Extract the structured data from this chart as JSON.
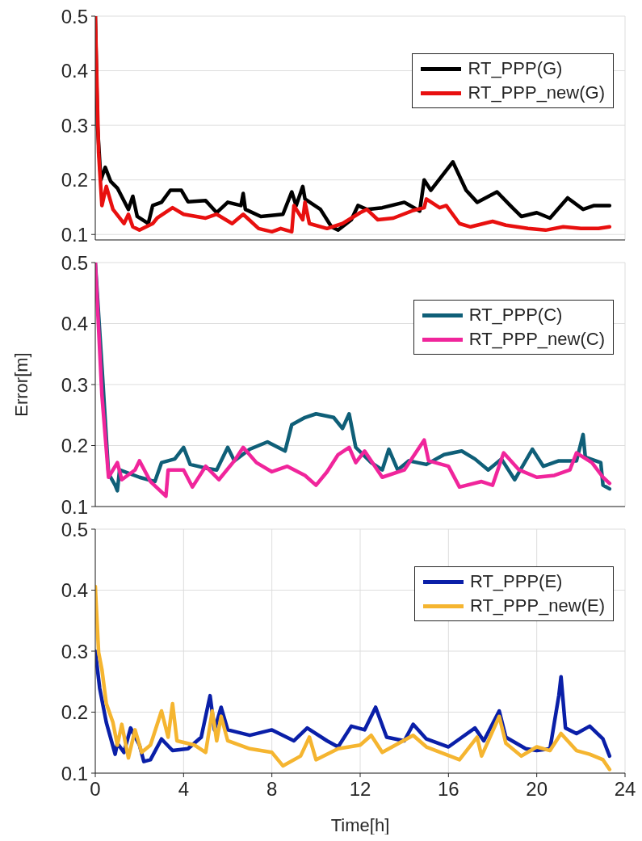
{
  "chart_data": [
    {
      "type": "line",
      "xlim": [
        0,
        24
      ],
      "xticks": [
        0,
        4,
        8,
        12,
        16,
        20,
        24
      ],
      "ylim": [
        0.09,
        0.5
      ],
      "yticks": [
        0.1,
        0.2,
        0.3,
        0.4,
        0.5
      ],
      "grid": true,
      "legend": "top right",
      "tick_labels": "y",
      "line_style": "solid",
      "marker": "none",
      "series": [
        {
          "name": "RT_PPP(G)",
          "color": "#000000",
          "x": [
            0,
            0.1,
            0.25,
            0.45,
            0.7,
            1.0,
            1.5,
            1.7,
            1.9,
            2.4,
            2.6,
            3.0,
            3.4,
            3.9,
            4.2,
            5.0,
            5.5,
            6.0,
            6.6,
            6.7,
            6.8,
            7.5,
            8.5,
            8.9,
            9.1,
            9.4,
            9.5,
            10.2,
            10.7,
            11.0,
            11.6,
            11.9,
            12.3,
            13.0,
            14.0,
            14.7,
            14.9,
            15.2,
            16.2,
            16.8,
            17.3,
            18.2,
            18.8,
            19.3,
            20.0,
            20.6,
            21.4,
            22.1,
            22.6,
            23.3
          ],
          "values": [
            0.5,
            0.3,
            0.2,
            0.223,
            0.197,
            0.185,
            0.146,
            0.17,
            0.133,
            0.12,
            0.153,
            0.159,
            0.181,
            0.181,
            0.16,
            0.162,
            0.14,
            0.159,
            0.153,
            0.175,
            0.146,
            0.133,
            0.137,
            0.178,
            0.153,
            0.188,
            0.165,
            0.146,
            0.114,
            0.108,
            0.127,
            0.153,
            0.146,
            0.149,
            0.159,
            0.143,
            0.2,
            0.181,
            0.233,
            0.181,
            0.159,
            0.178,
            0.153,
            0.133,
            0.14,
            0.13,
            0.167,
            0.146,
            0.153,
            0.153
          ]
        },
        {
          "name": "RT_PPP_new(G)",
          "color": "#e8100f",
          "x": [
            0,
            0.15,
            0.3,
            0.5,
            0.8,
            1.3,
            1.5,
            1.7,
            2.0,
            2.6,
            2.8,
            3.5,
            4.0,
            5.0,
            5.5,
            6.2,
            6.7,
            7.4,
            8.0,
            8.4,
            8.9,
            9.0,
            9.4,
            9.5,
            9.7,
            10.5,
            11.2,
            12.0,
            12.3,
            12.8,
            13.5,
            14.4,
            14.9,
            15.0,
            15.6,
            15.9,
            16.5,
            17.0,
            18.0,
            18.6,
            19.6,
            20.4,
            21.2,
            22.0,
            22.8,
            23.3
          ],
          "values": [
            0.5,
            0.25,
            0.153,
            0.188,
            0.146,
            0.12,
            0.137,
            0.114,
            0.108,
            0.12,
            0.13,
            0.149,
            0.137,
            0.13,
            0.137,
            0.12,
            0.137,
            0.111,
            0.105,
            0.111,
            0.105,
            0.153,
            0.127,
            0.159,
            0.12,
            0.111,
            0.12,
            0.14,
            0.146,
            0.127,
            0.13,
            0.144,
            0.149,
            0.165,
            0.149,
            0.153,
            0.12,
            0.114,
            0.124,
            0.117,
            0.111,
            0.108,
            0.114,
            0.111,
            0.111,
            0.114
          ]
        }
      ]
    },
    {
      "type": "line",
      "ylabel": "Error[m]",
      "xlim": [
        0,
        24
      ],
      "xticks": [
        0,
        4,
        8,
        12,
        16,
        20,
        24
      ],
      "ylim": [
        0.1,
        0.5
      ],
      "yticks": [
        0.1,
        0.2,
        0.3,
        0.4,
        0.5
      ],
      "grid": true,
      "legend": "top right",
      "tick_labels": "y",
      "line_style": "solid",
      "marker": "none",
      "series": [
        {
          "name": "RT_PPP(C)",
          "color": "#0f5f78",
          "x": [
            0,
            0.3,
            0.6,
            0.9,
            1.0,
            1.1,
            2.0,
            2.7,
            3.0,
            3.6,
            4.0,
            4.3,
            5.0,
            5.5,
            6.0,
            6.3,
            7.0,
            7.8,
            8.6,
            8.9,
            9.5,
            10.0,
            10.8,
            11.2,
            11.5,
            11.8,
            12.5,
            13.0,
            13.3,
            13.7,
            14.2,
            15.0,
            15.8,
            16.6,
            17.2,
            17.8,
            18.4,
            19.0,
            19.8,
            20.3,
            21.0,
            21.8,
            22.1,
            22.2,
            22.9,
            23.0,
            23.3
          ],
          "values": [
            0.5,
            0.33,
            0.154,
            0.135,
            0.126,
            0.16,
            0.148,
            0.141,
            0.172,
            0.178,
            0.197,
            0.169,
            0.163,
            0.16,
            0.197,
            0.175,
            0.194,
            0.206,
            0.191,
            0.234,
            0.246,
            0.252,
            0.246,
            0.228,
            0.252,
            0.197,
            0.172,
            0.16,
            0.194,
            0.16,
            0.175,
            0.169,
            0.185,
            0.191,
            0.178,
            0.16,
            0.178,
            0.144,
            0.194,
            0.166,
            0.175,
            0.175,
            0.218,
            0.181,
            0.172,
            0.135,
            0.129
          ]
        },
        {
          "name": "RT_PPP_new(C)",
          "color": "#f0259b",
          "x": [
            0,
            0.3,
            0.6,
            1.0,
            1.2,
            1.8,
            2.0,
            2.5,
            3.2,
            3.3,
            4.0,
            4.4,
            5.0,
            5.6,
            6.3,
            6.7,
            7.3,
            8.0,
            8.7,
            9.5,
            10.0,
            10.5,
            11.0,
            11.5,
            11.8,
            12.2,
            13.0,
            14.0,
            14.9,
            15.1,
            16.0,
            16.5,
            17.5,
            18.0,
            18.5,
            19.2,
            20.0,
            20.8,
            21.5,
            21.8,
            22.5,
            23.0,
            23.3
          ],
          "values": [
            0.5,
            0.283,
            0.148,
            0.172,
            0.144,
            0.16,
            0.175,
            0.141,
            0.117,
            0.16,
            0.16,
            0.132,
            0.166,
            0.144,
            0.175,
            0.197,
            0.172,
            0.157,
            0.166,
            0.151,
            0.135,
            0.157,
            0.185,
            0.197,
            0.172,
            0.191,
            0.148,
            0.16,
            0.209,
            0.175,
            0.166,
            0.132,
            0.141,
            0.135,
            0.188,
            0.16,
            0.148,
            0.151,
            0.16,
            0.188,
            0.172,
            0.148,
            0.138
          ]
        }
      ]
    },
    {
      "type": "line",
      "xlabel": "Time[h]",
      "xlim": [
        0,
        24
      ],
      "xticks": [
        0,
        4,
        8,
        12,
        16,
        20,
        24
      ],
      "ylim": [
        0.1,
        0.5
      ],
      "yticks": [
        0.1,
        0.2,
        0.3,
        0.4,
        0.5
      ],
      "grid": true,
      "legend": "top right",
      "line_style": "solid",
      "marker": "none",
      "series": [
        {
          "name": "RT_PPP(E)",
          "color": "#0a1fa8",
          "x": [
            0,
            0.2,
            0.5,
            0.9,
            1.0,
            1.3,
            1.6,
            2.0,
            2.2,
            2.5,
            3.0,
            3.5,
            4.2,
            4.8,
            5.2,
            5.4,
            5.7,
            6.0,
            7.0,
            8.0,
            9.0,
            9.6,
            10.5,
            11.0,
            11.6,
            12.2,
            12.7,
            13.2,
            14.0,
            14.4,
            15.0,
            16.0,
            16.5,
            17.2,
            17.6,
            18.3,
            18.6,
            19.5,
            20.0,
            20.6,
            21.0,
            21.1,
            21.3,
            21.8,
            22.4,
            23.0,
            23.3
          ],
          "values": [
            0.3,
            0.239,
            0.183,
            0.131,
            0.149,
            0.134,
            0.174,
            0.146,
            0.119,
            0.122,
            0.156,
            0.137,
            0.14,
            0.159,
            0.227,
            0.171,
            0.208,
            0.171,
            0.162,
            0.171,
            0.153,
            0.174,
            0.153,
            0.143,
            0.177,
            0.171,
            0.208,
            0.159,
            0.153,
            0.18,
            0.156,
            0.143,
            0.156,
            0.174,
            0.153,
            0.202,
            0.159,
            0.14,
            0.137,
            0.14,
            0.227,
            0.258,
            0.174,
            0.165,
            0.177,
            0.156,
            0.128
          ]
        },
        {
          "name": "RT_PPP_new(E)",
          "color": "#f5b530",
          "x": [
            0,
            0.15,
            0.3,
            0.5,
            0.8,
            1.0,
            1.2,
            1.5,
            1.8,
            2.1,
            2.5,
            3.0,
            3.3,
            3.5,
            3.7,
            4.5,
            5.0,
            5.3,
            5.5,
            5.7,
            6.0,
            7.0,
            8.0,
            8.5,
            9.3,
            9.7,
            10.0,
            11.0,
            12.0,
            12.5,
            13.0,
            14.4,
            15.0,
            16.5,
            17.3,
            17.5,
            18.3,
            18.6,
            19.3,
            20.0,
            20.6,
            21.1,
            21.8,
            22.4,
            23.0,
            23.3
          ],
          "values": [
            0.406,
            0.298,
            0.27,
            0.214,
            0.183,
            0.146,
            0.18,
            0.125,
            0.171,
            0.134,
            0.146,
            0.202,
            0.159,
            0.214,
            0.153,
            0.146,
            0.134,
            0.202,
            0.153,
            0.193,
            0.153,
            0.14,
            0.134,
            0.112,
            0.128,
            0.159,
            0.122,
            0.14,
            0.146,
            0.162,
            0.134,
            0.162,
            0.143,
            0.122,
            0.159,
            0.128,
            0.193,
            0.149,
            0.128,
            0.143,
            0.137,
            0.165,
            0.137,
            0.131,
            0.122,
            0.106
          ]
        }
      ]
    }
  ]
}
